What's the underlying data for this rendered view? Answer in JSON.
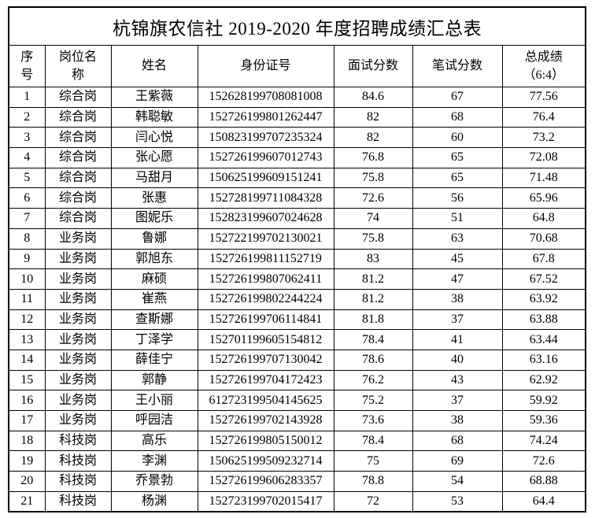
{
  "page": {
    "background": "#ffffff",
    "border_color": "#000000",
    "text_color": "#000000"
  },
  "title": "杭锦旗农信社 2019-2020 年度招聘成绩汇总表",
  "table": {
    "headers": [
      "序\n号",
      "岗位名\n称",
      "姓名",
      "身份证号",
      "面试分数",
      "笔试分数",
      "总成绩\n（6:4）"
    ],
    "rows": [
      [
        "1",
        "综合岗",
        "王紫薇",
        "152628199708081008",
        "84.6",
        "67",
        "77.56"
      ],
      [
        "2",
        "综合岗",
        "韩聪敏",
        "152726199801262447",
        "82",
        "68",
        "76.4"
      ],
      [
        "3",
        "综合岗",
        "闫心悦",
        "150823199707235324",
        "82",
        "60",
        "73.2"
      ],
      [
        "4",
        "综合岗",
        "张心愿",
        "152726199607012743",
        "76.8",
        "65",
        "72.08"
      ],
      [
        "5",
        "综合岗",
        "马甜月",
        "150625199609151241",
        "75.8",
        "65",
        "71.48"
      ],
      [
        "6",
        "综合岗",
        "张惠",
        "152728199711084328",
        "72.6",
        "56",
        "65.96"
      ],
      [
        "7",
        "综合岗",
        "图妮乐",
        "152823199607024628",
        "74",
        "51",
        "64.8"
      ],
      [
        "8",
        "业务岗",
        "鲁娜",
        "152722199702130021",
        "75.8",
        "63",
        "70.68"
      ],
      [
        "9",
        "业务岗",
        "郭旭东",
        "152726199811152719",
        "83",
        "45",
        "67.8"
      ],
      [
        "10",
        "业务岗",
        "麻硕",
        "152726199807062411",
        "81.2",
        "47",
        "67.52"
      ],
      [
        "11",
        "业务岗",
        "崔燕",
        "152726199802244224",
        "81.2",
        "38",
        "63.92"
      ],
      [
        "12",
        "业务岗",
        "查斯娜",
        "152726199706114841",
        "81.8",
        "37",
        "63.88"
      ],
      [
        "13",
        "业务岗",
        "丁泽学",
        "152701199605154812",
        "78.4",
        "41",
        "63.44"
      ],
      [
        "14",
        "业务岗",
        "薛佳宁",
        "152726199707130042",
        "78.6",
        "40",
        "63.16"
      ],
      [
        "15",
        "业务岗",
        "郭静",
        "152726199704172423",
        "76.2",
        "43",
        "62.92"
      ],
      [
        "16",
        "业务岗",
        "王小丽",
        "612723199504145625",
        "75.2",
        "37",
        "59.92"
      ],
      [
        "17",
        "业务岗",
        "呼园洁",
        "152726199702143928",
        "73.6",
        "38",
        "59.36"
      ],
      [
        "18",
        "科技岗",
        "高乐",
        "152726199805150012",
        "78.4",
        "68",
        "74.24"
      ],
      [
        "19",
        "科技岗",
        "李渊",
        "150625199509232714",
        "75",
        "69",
        "72.6"
      ],
      [
        "20",
        "科技岗",
        "乔景勃",
        "152726199606283357",
        "78.8",
        "54",
        "68.88"
      ],
      [
        "21",
        "科技岗",
        "杨渊",
        "152723199702015417",
        "72",
        "53",
        "64.4"
      ]
    ]
  }
}
